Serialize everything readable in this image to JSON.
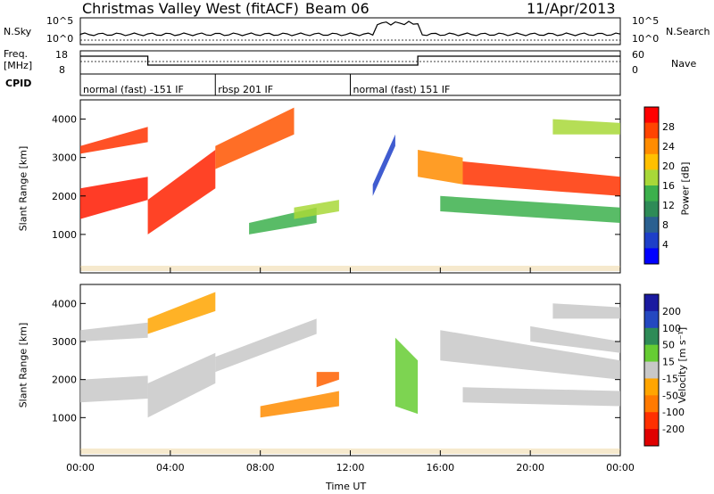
{
  "header": {
    "title": "Christmas Valley West (fitACF)",
    "beam": "Beam 06",
    "date": "11/Apr/2013"
  },
  "status_panels": {
    "nsky_label": "N.Sky",
    "nsearch_label": "N.Search",
    "nsky_ticks": [
      "10^5",
      "10^0"
    ],
    "nsky_right_ticks": [
      "10^5",
      "10^0"
    ],
    "freq_label": "Freq.",
    "freq_unit": "[MHz]",
    "freq_ticks": [
      "18",
      "8"
    ],
    "nave_label": "Nave",
    "nave_ticks": [
      "60",
      "0"
    ],
    "cpid_label": "CPID",
    "cpid_segments": [
      {
        "start": 0.0,
        "end": 6.0,
        "label": "normal (fast) -151 IF"
      },
      {
        "start": 6.0,
        "end": 12.0,
        "label": "rbsp 201 IF"
      },
      {
        "start": 12.0,
        "end": 24.0,
        "label": "normal (fast) 151 IF"
      }
    ]
  },
  "power_colorbar": {
    "label": "Power [dB]",
    "ticks": [
      "28",
      "24",
      "20",
      "16",
      "12",
      "8",
      "4"
    ],
    "colors": [
      "#ff0000",
      "#ff4400",
      "#ff8c00",
      "#ffc000",
      "#a8d838",
      "#3cb04c",
      "#2e8b57",
      "#2a6090",
      "#1e3fc8",
      "#0000ff"
    ]
  },
  "velocity_colorbar": {
    "label": "Velocity [m s⁻¹]",
    "ticks": [
      "200",
      "100",
      "50",
      "15",
      "-15",
      "-50",
      "-100",
      "-200"
    ],
    "colors": [
      "#1a1aa0",
      "#2448c0",
      "#2e8b57",
      "#66cc33",
      "#c8c8c8",
      "#ffa500",
      "#ff7a00",
      "#ff3000",
      "#e00000"
    ]
  },
  "chart_data": [
    {
      "type": "heatmap",
      "name": "power",
      "ylabel": "Slant Range [km]",
      "ylim": [
        0,
        4500
      ],
      "xlim": [
        0,
        24
      ],
      "yticks": [
        "4000",
        "3000",
        "2000",
        "1000"
      ],
      "yticks_values": [
        4000,
        3000,
        2000,
        1000
      ],
      "bands": [
        {
          "x": [
            0,
            3
          ],
          "y0": [
            1400,
            1900
          ],
          "y1": [
            2200,
            2500
          ],
          "color": "#ff1a00"
        },
        {
          "x": [
            0,
            3
          ],
          "y0": [
            3100,
            3400
          ],
          "y1": [
            3300,
            3800
          ],
          "color": "#ff3300"
        },
        {
          "x": [
            3,
            6
          ],
          "y0": [
            1000,
            2200
          ],
          "y1": [
            1900,
            3200
          ],
          "color": "#ff2200"
        },
        {
          "x": [
            6,
            9.5
          ],
          "y0": [
            2700,
            3600
          ],
          "y1": [
            3300,
            4300
          ],
          "color": "#ff5500"
        },
        {
          "x": [
            7.5,
            10.5
          ],
          "y0": [
            1000,
            1300
          ],
          "y1": [
            1300,
            1700
          ],
          "color": "#3cb04c"
        },
        {
          "x": [
            9.5,
            11.5
          ],
          "y0": [
            1400,
            1600
          ],
          "y1": [
            1700,
            1900
          ],
          "color": "#a8d838"
        },
        {
          "x": [
            13,
            14
          ],
          "y0": [
            2000,
            3300
          ],
          "y1": [
            2300,
            3600
          ],
          "color": "#1e3fc8"
        },
        {
          "x": [
            15,
            17
          ],
          "y0": [
            2500,
            2300
          ],
          "y1": [
            3200,
            3000
          ],
          "color": "#ff8c00"
        },
        {
          "x": [
            17,
            24
          ],
          "y0": [
            2300,
            2000
          ],
          "y1": [
            2900,
            2500
          ],
          "color": "#ff3300"
        },
        {
          "x": [
            16,
            24
          ],
          "y0": [
            1600,
            1300
          ],
          "y1": [
            2000,
            1700
          ],
          "color": "#3cb04c"
        },
        {
          "x": [
            21,
            24
          ],
          "y0": [
            3600,
            3600
          ],
          "y1": [
            4000,
            3900
          ],
          "color": "#a8d838"
        }
      ]
    },
    {
      "type": "heatmap",
      "name": "velocity",
      "ylabel": "Slant Range [km]",
      "xlabel": "Time UT",
      "ylim": [
        0,
        4500
      ],
      "xlim": [
        0,
        24
      ],
      "yticks": [
        "4000",
        "3000",
        "2000",
        "1000"
      ],
      "yticks_values": [
        4000,
        3000,
        2000,
        1000
      ],
      "xticks": [
        "00:00",
        "04:00",
        "08:00",
        "12:00",
        "16:00",
        "20:00",
        "00:00"
      ],
      "xticks_values": [
        0,
        4,
        8,
        12,
        16,
        20,
        24
      ],
      "bands": [
        {
          "x": [
            0,
            3
          ],
          "y0": [
            1400,
            1500
          ],
          "y1": [
            2000,
            2100
          ],
          "color": "#c8c8c8"
        },
        {
          "x": [
            0,
            3
          ],
          "y0": [
            3000,
            3100
          ],
          "y1": [
            3300,
            3500
          ],
          "color": "#c8c8c8"
        },
        {
          "x": [
            3,
            6
          ],
          "y0": [
            1000,
            1900
          ],
          "y1": [
            1900,
            2700
          ],
          "color": "#c8c8c8"
        },
        {
          "x": [
            3,
            6
          ],
          "y0": [
            3200,
            3800
          ],
          "y1": [
            3600,
            4300
          ],
          "color": "#ffa500"
        },
        {
          "x": [
            6,
            10.5
          ],
          "y0": [
            2200,
            3200
          ],
          "y1": [
            2600,
            3600
          ],
          "color": "#c8c8c8"
        },
        {
          "x": [
            8,
            11.5
          ],
          "y0": [
            1000,
            1300
          ],
          "y1": [
            1300,
            1700
          ],
          "color": "#ff8c00"
        },
        {
          "x": [
            10.5,
            11.5
          ],
          "y0": [
            1800,
            2000
          ],
          "y1": [
            2200,
            2200
          ],
          "color": "#ff6000"
        },
        {
          "x": [
            14,
            15
          ],
          "y0": [
            1300,
            1100
          ],
          "y1": [
            3100,
            2500
          ],
          "color": "#66cc33"
        },
        {
          "x": [
            16,
            24
          ],
          "y0": [
            2500,
            2000
          ],
          "y1": [
            3300,
            2500
          ],
          "color": "#c8c8c8"
        },
        {
          "x": [
            17,
            24
          ],
          "y0": [
            1400,
            1300
          ],
          "y1": [
            1800,
            1700
          ],
          "color": "#c8c8c8"
        },
        {
          "x": [
            20,
            24
          ],
          "y0": [
            3000,
            2700
          ],
          "y1": [
            3400,
            3000
          ],
          "color": "#c8c8c8"
        },
        {
          "x": [
            21,
            24
          ],
          "y0": [
            3600,
            3600
          ],
          "y1": [
            4000,
            3900
          ],
          "color": "#c8c8c8"
        }
      ]
    }
  ]
}
